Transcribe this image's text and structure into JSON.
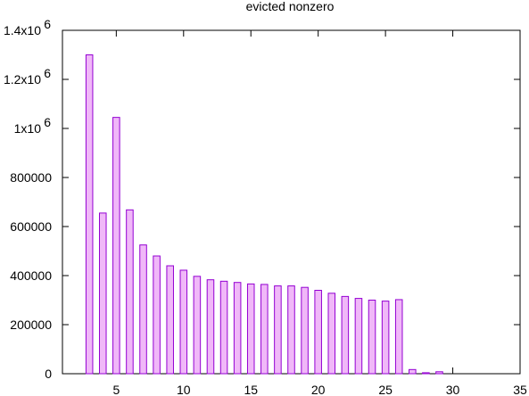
{
  "chart_data": {
    "type": "bar",
    "title": "evicted nonzero",
    "xlabel": "",
    "ylabel": "",
    "xlim": [
      1,
      35
    ],
    "ylim": [
      0,
      1400000
    ],
    "x_ticks": [
      {
        "value": 5,
        "label": "5"
      },
      {
        "value": 10,
        "label": "10"
      },
      {
        "value": 15,
        "label": "15"
      },
      {
        "value": 20,
        "label": "20"
      },
      {
        "value": 25,
        "label": "25"
      },
      {
        "value": 30,
        "label": "30"
      },
      {
        "value": 35,
        "label": "35"
      }
    ],
    "y_ticks": [
      {
        "value": 0,
        "label": "0"
      },
      {
        "value": 200000,
        "label": "200000"
      },
      {
        "value": 400000,
        "label": "400000"
      },
      {
        "value": 600000,
        "label": "600000"
      },
      {
        "value": 800000,
        "label": "800000"
      },
      {
        "value": 1000000,
        "label": "1x10",
        "exp": "6"
      },
      {
        "value": 1200000,
        "label": "1.2x10",
        "exp": "6"
      },
      {
        "value": 1400000,
        "label": "1.4x10",
        "exp": "6"
      }
    ],
    "grid": false,
    "bar_width": 0.5,
    "colors": {
      "fill": "#f0b8f8",
      "stroke": "#9400d3",
      "axis": "#000000"
    },
    "x": [
      3,
      4,
      5,
      6,
      7,
      8,
      9,
      10,
      11,
      12,
      13,
      14,
      15,
      16,
      17,
      18,
      19,
      20,
      21,
      22,
      23,
      24,
      25,
      26,
      27,
      28,
      29
    ],
    "values": [
      1300000,
      655000,
      1045000,
      668000,
      525000,
      480000,
      440000,
      422000,
      397000,
      383000,
      377000,
      372000,
      366000,
      364000,
      358000,
      358000,
      352000,
      340000,
      328000,
      315000,
      307000,
      300000,
      296000,
      302000,
      17000,
      4000,
      8000
    ]
  }
}
